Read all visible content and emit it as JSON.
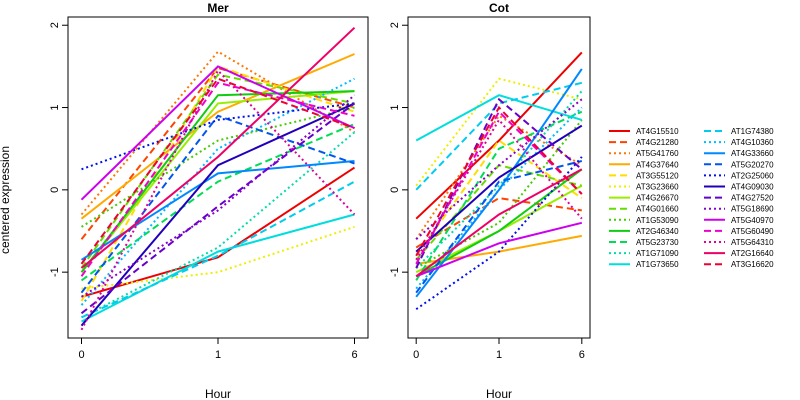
{
  "chart_data": {
    "type": "line",
    "ylabel": "centered expression",
    "xlabel": "Hour",
    "x": [
      "0",
      "1",
      "6"
    ],
    "yticks": [
      "-1",
      "0",
      "1",
      "2"
    ],
    "ylim": [
      -1.8,
      2.1
    ],
    "legend_position": "right",
    "panels": [
      {
        "title": "Mer",
        "series": [
          {
            "name": "AT4G15510",
            "color": "#ee0000",
            "dash": "solid",
            "values": [
              -1.3,
              -0.82,
              0.27
            ]
          },
          {
            "name": "AT4G21280",
            "color": "#ff4400",
            "dash": "dashed",
            "values": [
              -0.6,
              1.48,
              1.0
            ]
          },
          {
            "name": "AT5G41760",
            "color": "#ff7700",
            "dash": "dotted",
            "values": [
              -0.3,
              1.68,
              0.7
            ]
          },
          {
            "name": "AT4G37640",
            "color": "#ffaa00",
            "dash": "solid",
            "values": [
              -0.35,
              0.95,
              1.65
            ]
          },
          {
            "name": "AT3G55120",
            "color": "#ffdd00",
            "dash": "dashed",
            "values": [
              -1.35,
              1.5,
              0.95
            ]
          },
          {
            "name": "AT3G23660",
            "color": "#eeee00",
            "dash": "dotted",
            "values": [
              -1.2,
              -1.0,
              -0.45
            ]
          },
          {
            "name": "AT4G26670",
            "color": "#99ee00",
            "dash": "solid",
            "values": [
              -1.0,
              1.05,
              1.2
            ]
          },
          {
            "name": "AT4G01660",
            "color": "#66dd00",
            "dash": "dashed",
            "values": [
              -0.95,
              1.4,
              1.05
            ]
          },
          {
            "name": "AT1G53090",
            "color": "#44cc00",
            "dash": "dotted",
            "values": [
              -0.45,
              0.6,
              1.0
            ]
          },
          {
            "name": "AT2G46340",
            "color": "#11cc11",
            "dash": "solid",
            "values": [
              -1.0,
              1.15,
              1.2
            ]
          },
          {
            "name": "AT5G23730",
            "color": "#00dd55",
            "dash": "dashed",
            "values": [
              -1.1,
              0.1,
              0.8
            ]
          },
          {
            "name": "AT1G71090",
            "color": "#00ddaa",
            "dash": "dotted",
            "values": [
              -1.55,
              -0.7,
              0.7
            ]
          },
          {
            "name": "AT1G73650",
            "color": "#00dddd",
            "dash": "solid",
            "values": [
              -1.6,
              -0.75,
              -0.3
            ]
          },
          {
            "name": "AT1G74380",
            "color": "#00ccee",
            "dash": "dashed",
            "values": [
              -1.55,
              -0.8,
              0.1
            ]
          },
          {
            "name": "AT4G10360",
            "color": "#00bbff",
            "dash": "dotted",
            "values": [
              -1.4,
              0.5,
              1.35
            ]
          },
          {
            "name": "AT4G33660",
            "color": "#0088ff",
            "dash": "solid",
            "values": [
              -0.85,
              0.2,
              0.35
            ]
          },
          {
            "name": "AT5G20270",
            "color": "#0055ee",
            "dash": "dashed",
            "values": [
              -1.25,
              0.9,
              0.32
            ]
          },
          {
            "name": "AT2G25060",
            "color": "#0011ee",
            "dash": "dotted",
            "values": [
              0.25,
              0.85,
              1.05
            ]
          },
          {
            "name": "AT4G09030",
            "color": "#2200bb",
            "dash": "solid",
            "values": [
              -1.65,
              0.3,
              1.05
            ]
          },
          {
            "name": "AT4G27520",
            "color": "#6600cc",
            "dash": "dashed",
            "values": [
              -1.5,
              -0.2,
              1.05
            ]
          },
          {
            "name": "AT5G18690",
            "color": "#8800cc",
            "dash": "dotted",
            "values": [
              -1.3,
              -0.25,
              1.15
            ]
          },
          {
            "name": "AT5G40970",
            "color": "#cc00ee",
            "dash": "solid",
            "values": [
              -0.12,
              1.5,
              0.75
            ]
          },
          {
            "name": "AT5G60490",
            "color": "#ee00cc",
            "dash": "dashed",
            "values": [
              -1.05,
              1.3,
              0.9
            ]
          },
          {
            "name": "AT5G64310",
            "color": "#dd0099",
            "dash": "dotted",
            "values": [
              -1.7,
              1.45,
              -0.3
            ]
          },
          {
            "name": "AT2G16640",
            "color": "#ee0066",
            "dash": "solid",
            "values": [
              -0.95,
              0.4,
              1.97
            ]
          },
          {
            "name": "AT3G16620",
            "color": "#ee0033",
            "dash": "dashed",
            "values": [
              -0.9,
              1.35,
              0.75
            ]
          }
        ]
      },
      {
        "title": "Cot",
        "series": [
          {
            "name": "AT4G15510",
            "color": "#ee0000",
            "dash": "solid",
            "values": [
              -0.35,
              0.6,
              1.67
            ]
          },
          {
            "name": "AT4G21280",
            "color": "#ff4400",
            "dash": "dashed",
            "values": [
              -0.7,
              -0.1,
              -0.25
            ]
          },
          {
            "name": "AT5G41760",
            "color": "#ff7700",
            "dash": "dotted",
            "values": [
              -0.6,
              0.9,
              0.3
            ]
          },
          {
            "name": "AT4G37640",
            "color": "#ffaa00",
            "dash": "solid",
            "values": [
              -0.9,
              -0.75,
              -0.56
            ]
          },
          {
            "name": "AT3G55120",
            "color": "#ffdd00",
            "dash": "dashed",
            "values": [
              -0.8,
              0.6,
              -0.1
            ]
          },
          {
            "name": "AT3G23660",
            "color": "#eeee00",
            "dash": "dotted",
            "values": [
              0.05,
              1.35,
              1.1
            ]
          },
          {
            "name": "AT4G26670",
            "color": "#99ee00",
            "dash": "solid",
            "values": [
              -1.0,
              -0.5,
              0.05
            ]
          },
          {
            "name": "AT4G01660",
            "color": "#66dd00",
            "dash": "dashed",
            "values": [
              -0.85,
              0.3,
              0.05
            ]
          },
          {
            "name": "AT1G53090",
            "color": "#44cc00",
            "dash": "dotted",
            "values": [
              -0.95,
              -0.4,
              0.85
            ]
          },
          {
            "name": "AT2G46340",
            "color": "#11cc11",
            "dash": "solid",
            "values": [
              -1.05,
              -0.5,
              0.25
            ]
          },
          {
            "name": "AT5G23730",
            "color": "#00dd55",
            "dash": "dashed",
            "values": [
              -1.1,
              0.5,
              0.95
            ]
          },
          {
            "name": "AT1G71090",
            "color": "#00ddaa",
            "dash": "dotted",
            "values": [
              -0.95,
              0.05,
              1.2
            ]
          },
          {
            "name": "AT1G73650",
            "color": "#00dddd",
            "dash": "solid",
            "values": [
              0.6,
              1.15,
              0.85
            ]
          },
          {
            "name": "AT1G74380",
            "color": "#00ccee",
            "dash": "dashed",
            "values": [
              0.0,
              1.05,
              1.3
            ]
          },
          {
            "name": "AT4G10360",
            "color": "#00bbff",
            "dash": "dotted",
            "values": [
              -1.2,
              0.0,
              1.0
            ]
          },
          {
            "name": "AT4G33660",
            "color": "#0088ff",
            "dash": "solid",
            "values": [
              -1.3,
              0.0,
              1.47
            ]
          },
          {
            "name": "AT5G20270",
            "color": "#0055ee",
            "dash": "dashed",
            "values": [
              -1.25,
              0.1,
              0.35
            ]
          },
          {
            "name": "AT2G25060",
            "color": "#0011ee",
            "dash": "dotted",
            "values": [
              -1.45,
              -0.75,
              0.4
            ]
          },
          {
            "name": "AT4G09030",
            "color": "#2200bb",
            "dash": "solid",
            "values": [
              -0.75,
              0.15,
              0.78
            ]
          },
          {
            "name": "AT4G27520",
            "color": "#6600cc",
            "dash": "dashed",
            "values": [
              -0.95,
              1.1,
              0.25
            ]
          },
          {
            "name": "AT5G18690",
            "color": "#8800cc",
            "dash": "dotted",
            "values": [
              -0.6,
              0.3,
              1.1
            ]
          },
          {
            "name": "AT5G40970",
            "color": "#cc00ee",
            "dash": "solid",
            "values": [
              -1.05,
              -0.65,
              -0.4
            ]
          },
          {
            "name": "AT5G60490",
            "color": "#ee00cc",
            "dash": "dashed",
            "values": [
              -0.9,
              0.95,
              -0.05
            ]
          },
          {
            "name": "AT5G64310",
            "color": "#dd0099",
            "dash": "dotted",
            "values": [
              -0.85,
              0.85,
              -0.35
            ]
          },
          {
            "name": "AT2G16640",
            "color": "#ee0066",
            "dash": "solid",
            "values": [
              -1.05,
              -0.3,
              0.25
            ]
          },
          {
            "name": "AT3G16620",
            "color": "#ee0033",
            "dash": "dashed",
            "values": [
              -0.8,
              1.0,
              -0.05
            ]
          }
        ]
      }
    ]
  }
}
